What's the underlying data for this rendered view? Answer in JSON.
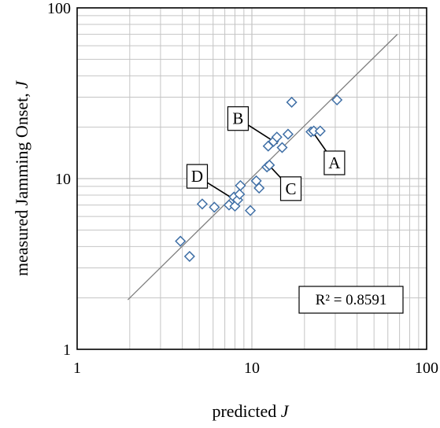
{
  "chart_data": {
    "type": "scatter",
    "xlabel": "predicted J",
    "ylabel": "measured Jamming Onset, J",
    "xscale": "log",
    "yscale": "log",
    "xlim": [
      1,
      100
    ],
    "ylim": [
      1,
      100
    ],
    "grid": true,
    "x_ticks": [
      "1",
      "10",
      "100"
    ],
    "y_ticks": [
      "1",
      "10",
      "100"
    ],
    "marker": "diamond",
    "marker_color": "#3f6fa6",
    "trendline_color": "#7f7f7f",
    "points": [
      {
        "x": 3.9,
        "y": 4.3
      },
      {
        "x": 4.4,
        "y": 3.5
      },
      {
        "x": 5.2,
        "y": 7.1
      },
      {
        "x": 6.1,
        "y": 6.8
      },
      {
        "x": 7.4,
        "y": 7.0
      },
      {
        "x": 7.9,
        "y": 7.8
      },
      {
        "x": 8.0,
        "y": 6.9
      },
      {
        "x": 8.3,
        "y": 7.5
      },
      {
        "x": 8.5,
        "y": 8.1
      },
      {
        "x": 8.6,
        "y": 9.1
      },
      {
        "x": 9.8,
        "y": 6.5
      },
      {
        "x": 10.6,
        "y": 9.7
      },
      {
        "x": 11.0,
        "y": 8.8
      },
      {
        "x": 12.2,
        "y": 11.7
      },
      {
        "x": 12.6,
        "y": 12.0
      },
      {
        "x": 12.4,
        "y": 15.5
      },
      {
        "x": 13.3,
        "y": 16.5
      },
      {
        "x": 13.9,
        "y": 17.5
      },
      {
        "x": 14.9,
        "y": 15.2
      },
      {
        "x": 16.1,
        "y": 18.2
      },
      {
        "x": 16.9,
        "y": 28.0
      },
      {
        "x": 21.8,
        "y": 18.8
      },
      {
        "x": 22.6,
        "y": 19.0
      },
      {
        "x": 24.6,
        "y": 19.0
      },
      {
        "x": 30.7,
        "y": 28.9
      }
    ],
    "trendline": {
      "x": [
        1.95,
        68
      ],
      "y": [
        1.95,
        70
      ]
    },
    "annotations": [
      {
        "label": "A",
        "point": {
          "x": 22.2,
          "y": 18.9
        }
      },
      {
        "label": "B",
        "point": {
          "x": 14.0,
          "y": 16.0
        }
      },
      {
        "label": "C",
        "point": {
          "x": 12.5,
          "y": 12.0
        }
      },
      {
        "label": "D",
        "point": {
          "x": 8.0,
          "y": 7.5
        }
      }
    ],
    "r2_label": "R² = 0.8591"
  }
}
